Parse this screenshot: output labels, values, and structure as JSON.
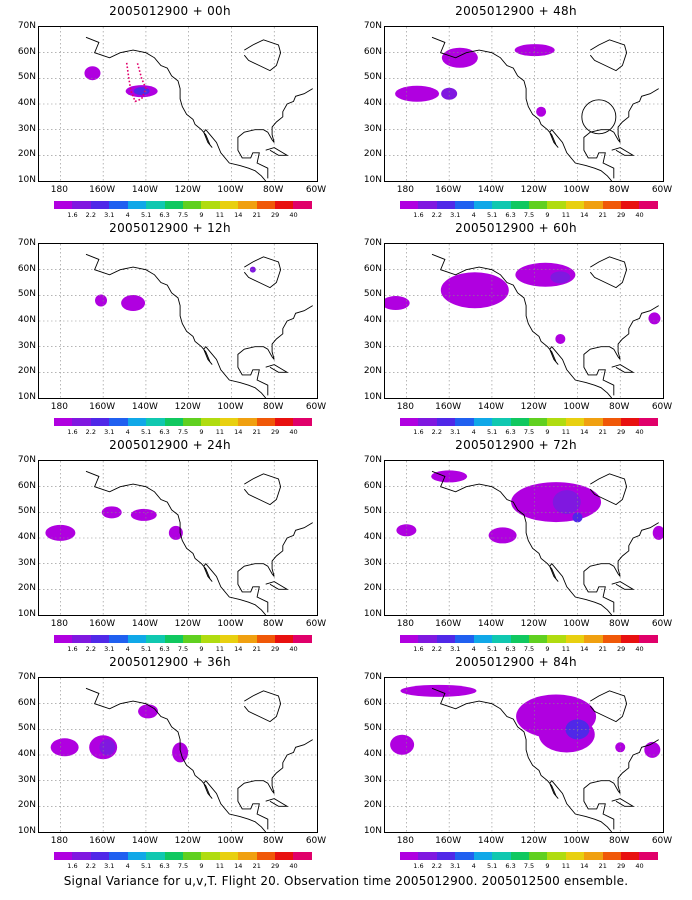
{
  "caption": "Signal Variance for u,v,T. Flight 20. Observation time 2005012900. 2005012500 ensemble.",
  "lat_labels": [
    "70N",
    "60N",
    "50N",
    "40N",
    "30N",
    "20N",
    "10N"
  ],
  "lon_labels": [
    "180",
    "160W",
    "140W",
    "120W",
    "100W",
    "80W",
    "60W"
  ],
  "colorbar": {
    "labels": [
      "1.6",
      "2.2",
      "3.1",
      "4",
      "5.1",
      "6.3",
      "7.5",
      "9",
      "11",
      "14",
      "21",
      "29",
      "40"
    ],
    "colors": [
      "#b000e0",
      "#8018e0",
      "#5028e8",
      "#2060f0",
      "#10a8e8",
      "#10c8b0",
      "#10c860",
      "#60d020",
      "#b0dc10",
      "#e8d010",
      "#f0a010",
      "#f05808",
      "#e81010",
      "#e0006a"
    ]
  },
  "map_region": {
    "lon_min": -190,
    "lon_max": -60,
    "lat_min": 10,
    "lat_max": 70
  },
  "panels": [
    {
      "title": "2005012900 + 00h",
      "column": "left",
      "row": 0
    },
    {
      "title": "2005012900 + 48h",
      "column": "right",
      "row": 0
    },
    {
      "title": "2005012900 + 12h",
      "column": "left",
      "row": 1
    },
    {
      "title": "2005012900 + 60h",
      "column": "right",
      "row": 1
    },
    {
      "title": "2005012900 + 24h",
      "column": "left",
      "row": 2
    },
    {
      "title": "2005012900 + 72h",
      "column": "right",
      "row": 2
    },
    {
      "title": "2005012900 + 36h",
      "column": "left",
      "row": 3
    },
    {
      "title": "2005012900 + 84h",
      "column": "right",
      "row": 3
    }
  ]
}
